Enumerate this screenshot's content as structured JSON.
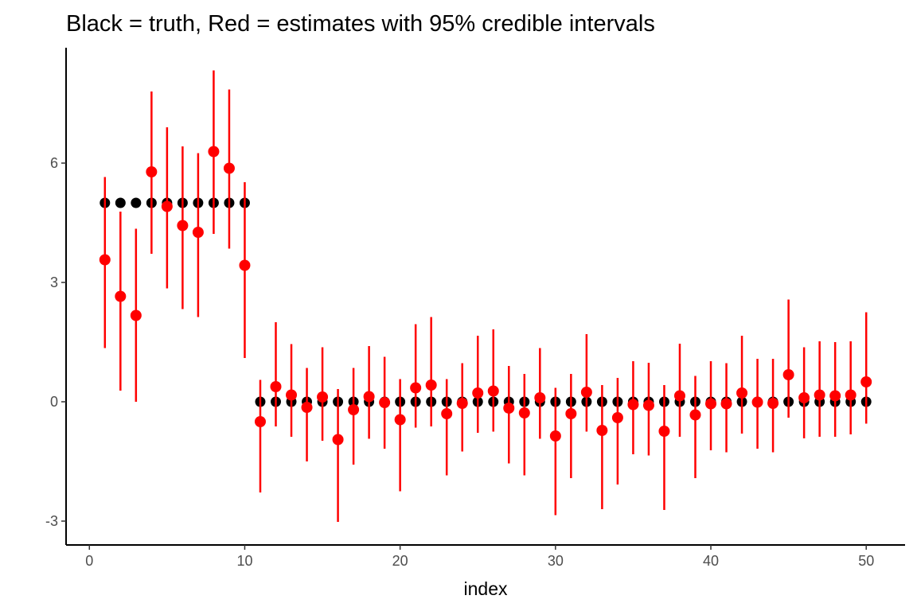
{
  "chart_data": {
    "type": "scatter",
    "title": "Black = truth, Red = estimates with 95% credible intervals",
    "xlabel": "index",
    "ylabel": "",
    "xlim": [
      -1.5,
      52.5
    ],
    "ylim": [
      -3.6,
      8.9
    ],
    "x_ticks": [
      0,
      10,
      20,
      30,
      40,
      50
    ],
    "y_ticks": [
      -3,
      0,
      3,
      6
    ],
    "grid": false,
    "legend": "none",
    "colors": {
      "truth": "#000000",
      "estimate": "#ff0000"
    },
    "x": [
      1,
      2,
      3,
      4,
      5,
      6,
      7,
      8,
      9,
      10,
      11,
      12,
      13,
      14,
      15,
      16,
      17,
      18,
      19,
      20,
      21,
      22,
      23,
      24,
      25,
      26,
      27,
      28,
      29,
      30,
      31,
      32,
      33,
      34,
      35,
      36,
      37,
      38,
      39,
      40,
      41,
      42,
      43,
      44,
      45,
      46,
      47,
      48,
      49,
      50
    ],
    "truth": [
      5,
      5,
      5,
      5,
      5,
      5,
      5,
      5,
      5,
      5,
      0,
      0,
      0,
      0,
      0,
      0,
      0,
      0,
      0,
      0,
      0,
      0,
      0,
      0,
      0,
      0,
      0,
      0,
      0,
      0,
      0,
      0,
      0,
      0,
      0,
      0,
      0,
      0,
      0,
      0,
      0,
      0,
      0,
      0,
      0,
      0,
      0,
      0,
      0,
      0
    ],
    "estimate": [
      3.57,
      2.65,
      2.17,
      5.78,
      4.91,
      4.43,
      4.26,
      6.29,
      5.87,
      3.43,
      -0.5,
      0.38,
      0.17,
      -0.14,
      0.12,
      -0.95,
      -0.2,
      0.13,
      -0.02,
      -0.45,
      0.35,
      0.42,
      -0.3,
      -0.04,
      0.22,
      0.27,
      -0.16,
      -0.28,
      0.1,
      -0.86,
      -0.3,
      0.24,
      -0.72,
      -0.4,
      -0.07,
      -0.09,
      -0.74,
      0.15,
      -0.33,
      -0.05,
      -0.05,
      0.22,
      -0.01,
      -0.04,
      0.68,
      0.1,
      0.17,
      0.15,
      0.17,
      0.5
    ],
    "lower": [
      1.35,
      0.28,
      0.0,
      3.72,
      2.85,
      2.33,
      2.13,
      4.22,
      3.85,
      1.1,
      -2.28,
      -0.62,
      -0.88,
      -1.5,
      -0.98,
      -3.02,
      -1.58,
      -0.93,
      -1.18,
      -2.25,
      -0.65,
      -0.62,
      -1.85,
      -1.25,
      -0.78,
      -0.75,
      -1.55,
      -1.85,
      -0.93,
      -2.85,
      -1.92,
      -0.75,
      -2.7,
      -2.08,
      -1.32,
      -1.35,
      -2.72,
      -0.88,
      -1.92,
      -1.22,
      -1.27,
      -0.8,
      -1.18,
      -1.27,
      -0.4,
      -0.92,
      -0.88,
      -0.88,
      -0.82,
      -0.55
    ],
    "upper": [
      5.65,
      4.78,
      4.35,
      7.8,
      6.9,
      6.42,
      6.25,
      8.33,
      7.85,
      5.52,
      0.55,
      2.0,
      1.45,
      0.85,
      1.37,
      0.32,
      0.85,
      1.4,
      1.13,
      0.57,
      1.95,
      2.13,
      0.57,
      0.97,
      1.66,
      1.82,
      0.9,
      0.7,
      1.35,
      0.35,
      0.7,
      1.7,
      0.42,
      0.6,
      1.02,
      0.98,
      0.42,
      1.46,
      0.65,
      1.02,
      0.97,
      1.66,
      1.08,
      1.08,
      2.57,
      1.37,
      1.52,
      1.5,
      1.52,
      2.25
    ]
  }
}
